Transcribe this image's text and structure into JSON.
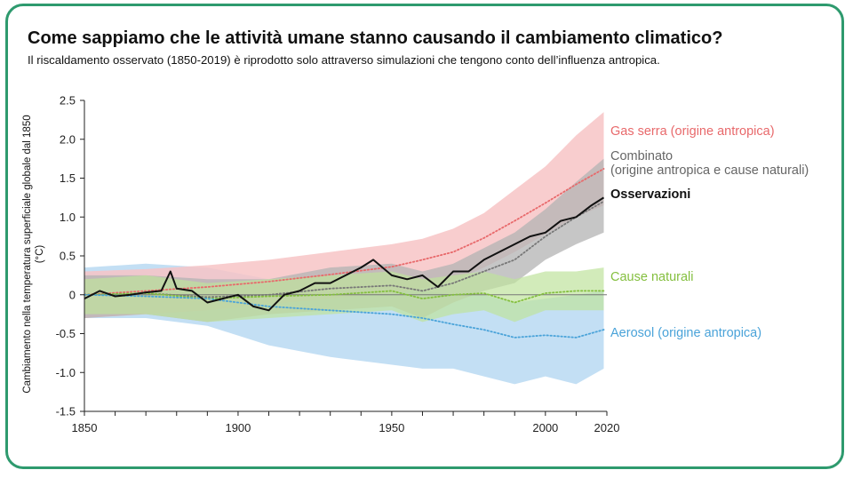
{
  "title": "Come sappiamo che le attività umane stanno causando il cambiamento climatico?",
  "subtitle": "Il riscaldamento osservato (1850-2019) è riprodotto solo attraverso simulazioni che tengono conto dell’influenza antropica.",
  "ylabel_line1": "Cambiamento nella temperatura superficiale globale dal 1850",
  "ylabel_line2": "(°C)",
  "labels": {
    "gas_serra": "Gas serra (origine antropica)",
    "combinato_1": "Combinato",
    "combinato_2": "(origine antropica e cause naturali)",
    "osservazioni": "Osservazioni",
    "cause_naturali": "Cause naturali",
    "aerosol": "Aerosol (origine antropica)"
  },
  "colors": {
    "frame": "#2e9a6e",
    "gas_serra": "#e8696b",
    "gas_serra_band": "#f7c4c6",
    "combinato": "#777777",
    "combinato_band": "#b3b3b3",
    "osservazioni": "#111111",
    "cause_naturali": "#84bf3f",
    "cause_naturali_band": "#bfe29d",
    "aerosol": "#4aa3d9",
    "aerosol_band": "#bcdcf3"
  },
  "chart_data": {
    "type": "area",
    "xlim": [
      1850,
      2020
    ],
    "ylim": [
      -1.5,
      2.5
    ],
    "x_ticks": [
      1850,
      1900,
      1950,
      2000,
      2020
    ],
    "y_ticks": [
      -1.5,
      -1.0,
      -0.5,
      0,
      0.5,
      1.0,
      1.5,
      2.0,
      2.5
    ],
    "y_tick_labels": [
      "-1.5",
      "-1.0",
      "-0.5",
      "0",
      "0.5",
      "1.0",
      "1.5",
      "2.0",
      "2.5"
    ],
    "xlabel": "",
    "ylabel": "Cambiamento nella temperatura superficiale globale dal 1850 (°C)",
    "grid": false,
    "zero_line": true,
    "series": [
      {
        "name": "Gas serra (origine antropica)",
        "key": "gas_serra",
        "style": "dotted",
        "x": [
          1850,
          1870,
          1890,
          1910,
          1930,
          1950,
          1960,
          1970,
          1980,
          1990,
          2000,
          2010,
          2019
        ],
        "mean": [
          0.0,
          0.05,
          0.1,
          0.17,
          0.26,
          0.36,
          0.45,
          0.55,
          0.73,
          0.95,
          1.18,
          1.42,
          1.62
        ],
        "band_x": [
          1850,
          1870,
          1890,
          1910,
          1930,
          1950,
          1960,
          1970,
          1980,
          1990,
          2000,
          2010,
          2019
        ],
        "band_low": [
          -0.3,
          -0.25,
          -0.2,
          -0.12,
          -0.05,
          0.02,
          0.08,
          0.18,
          0.35,
          0.55,
          0.78,
          1.0,
          1.15
        ],
        "band_high": [
          0.3,
          0.33,
          0.38,
          0.45,
          0.55,
          0.65,
          0.72,
          0.85,
          1.05,
          1.35,
          1.65,
          2.05,
          2.35
        ]
      },
      {
        "name": "Combinato (origine antropica e cause naturali)",
        "key": "combinato",
        "style": "dotted",
        "x": [
          1850,
          1870,
          1890,
          1910,
          1930,
          1950,
          1960,
          1970,
          1980,
          1990,
          2000,
          2010,
          2019
        ],
        "mean": [
          0.0,
          0.02,
          -0.03,
          0.0,
          0.08,
          0.12,
          0.05,
          0.15,
          0.3,
          0.45,
          0.75,
          1.0,
          1.2
        ],
        "band_x": [
          1850,
          1870,
          1890,
          1910,
          1930,
          1950,
          1960,
          1970,
          1980,
          1990,
          2000,
          2010,
          2019
        ],
        "band_low": [
          -0.3,
          -0.25,
          -0.35,
          -0.25,
          -0.2,
          -0.15,
          -0.3,
          -0.1,
          0.05,
          0.15,
          0.45,
          0.65,
          0.8
        ],
        "band_high": [
          0.25,
          0.25,
          0.2,
          0.2,
          0.35,
          0.4,
          0.3,
          0.4,
          0.6,
          0.8,
          1.1,
          1.45,
          1.75
        ]
      },
      {
        "name": "Osservazioni",
        "key": "osservazioni",
        "style": "solid",
        "x": [
          1850,
          1855,
          1860,
          1865,
          1870,
          1875,
          1878,
          1880,
          1885,
          1890,
          1895,
          1900,
          1905,
          1910,
          1915,
          1920,
          1925,
          1930,
          1935,
          1940,
          1944,
          1950,
          1955,
          1960,
          1965,
          1970,
          1975,
          1980,
          1985,
          1990,
          1995,
          2000,
          2005,
          2010,
          2015,
          2019
        ],
        "y": [
          -0.05,
          0.05,
          -0.02,
          0.0,
          0.03,
          0.05,
          0.3,
          0.08,
          0.05,
          -0.1,
          -0.05,
          0.0,
          -0.15,
          -0.2,
          0.0,
          0.05,
          0.15,
          0.15,
          0.25,
          0.35,
          0.45,
          0.25,
          0.2,
          0.25,
          0.1,
          0.3,
          0.3,
          0.45,
          0.55,
          0.65,
          0.75,
          0.8,
          0.95,
          1.0,
          1.15,
          1.25
        ]
      },
      {
        "name": "Cause naturali",
        "key": "cause_naturali",
        "style": "dotted",
        "x": [
          1850,
          1870,
          1890,
          1910,
          1930,
          1950,
          1960,
          1970,
          1980,
          1990,
          2000,
          2010,
          2019
        ],
        "mean": [
          0.0,
          0.02,
          -0.05,
          -0.02,
          0.0,
          0.05,
          -0.05,
          0.0,
          0.02,
          -0.1,
          0.02,
          0.05,
          0.05
        ],
        "band_x": [
          1850,
          1870,
          1890,
          1910,
          1930,
          1950,
          1960,
          1970,
          1980,
          1990,
          2000,
          2010,
          2019
        ],
        "band_low": [
          -0.25,
          -0.25,
          -0.35,
          -0.3,
          -0.25,
          -0.2,
          -0.35,
          -0.25,
          -0.2,
          -0.35,
          -0.2,
          -0.2,
          -0.2
        ],
        "band_high": [
          0.2,
          0.25,
          0.15,
          0.2,
          0.25,
          0.3,
          0.2,
          0.25,
          0.3,
          0.2,
          0.3,
          0.3,
          0.35
        ]
      },
      {
        "name": "Aerosol (origine antropica)",
        "key": "aerosol",
        "style": "dotted",
        "x": [
          1850,
          1870,
          1890,
          1910,
          1930,
          1950,
          1960,
          1970,
          1980,
          1990,
          2000,
          2010,
          2019
        ],
        "mean": [
          0.0,
          -0.02,
          -0.05,
          -0.15,
          -0.2,
          -0.25,
          -0.3,
          -0.38,
          -0.45,
          -0.55,
          -0.52,
          -0.55,
          -0.45
        ],
        "band_x": [
          1850,
          1870,
          1890,
          1910,
          1930,
          1950,
          1960,
          1970,
          1980,
          1990,
          2000,
          2010,
          2019
        ],
        "band_low": [
          -0.3,
          -0.3,
          -0.4,
          -0.65,
          -0.8,
          -0.9,
          -0.95,
          -0.95,
          -1.05,
          -1.15,
          -1.05,
          -1.15,
          -0.95
        ],
        "band_high": [
          0.35,
          0.4,
          0.35,
          0.2,
          0.15,
          0.1,
          0.05,
          0.0,
          0.0,
          -0.1,
          -0.05,
          0.0,
          0.05
        ]
      }
    ]
  }
}
